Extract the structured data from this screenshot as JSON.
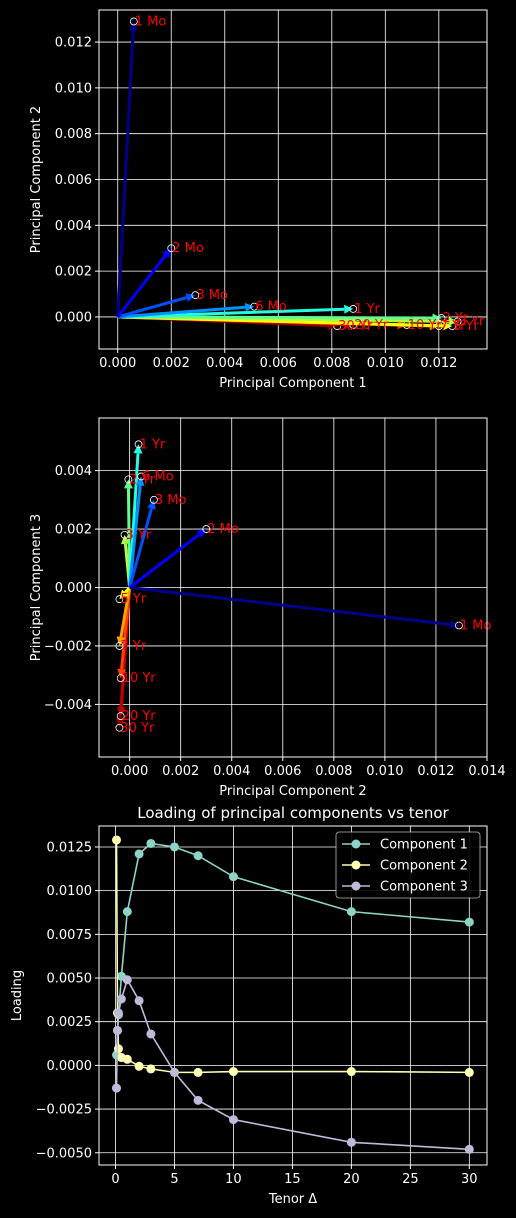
{
  "chart_data": [
    {
      "type": "quiver",
      "title": "",
      "xlabel": "Principal Component 1",
      "ylabel": "Principal Component 2",
      "xlim": [
        -0.0007,
        0.0138
      ],
      "ylim": [
        -0.0014,
        0.0134
      ],
      "xticks": [
        0.0,
        0.002,
        0.004,
        0.006,
        0.008,
        0.01,
        0.012
      ],
      "xtick_labels": [
        "0.000",
        "0.002",
        "0.004",
        "0.006",
        "0.008",
        "0.010",
        "0.012"
      ],
      "yticks": [
        0.0,
        0.002,
        0.004,
        0.006,
        0.008,
        0.01,
        0.012
      ],
      "ytick_labels": [
        "0.000",
        "0.002",
        "0.004",
        "0.006",
        "0.008",
        "0.010",
        "0.012"
      ],
      "grid": true,
      "arrows": [
        {
          "label": "1 Mo",
          "x": 0.0006,
          "y": 0.0129,
          "color": "#00008b"
        },
        {
          "label": "2 Mo",
          "x": 0.002,
          "y": 0.003,
          "color": "#0000ff"
        },
        {
          "label": "3 Mo",
          "x": 0.0029,
          "y": 0.00095,
          "color": "#0050ff"
        },
        {
          "label": "6 Mo",
          "x": 0.0051,
          "y": 0.00045,
          "color": "#0090ff"
        },
        {
          "label": "1 Yr",
          "x": 0.0088,
          "y": 0.00035,
          "color": "#20ffe0"
        },
        {
          "label": "2 Yr",
          "x": 0.0121,
          "y": -5e-05,
          "color": "#60ff90"
        },
        {
          "label": "3 Yr",
          "x": 0.0127,
          "y": -0.0002,
          "color": "#b0ff40"
        },
        {
          "label": "5 Yr",
          "x": 0.0125,
          "y": -0.0004,
          "color": "#ffff00"
        },
        {
          "label": "7 Yr",
          "x": 0.012,
          "y": -0.0004,
          "color": "#ffa000"
        },
        {
          "label": "10 Yr",
          "x": 0.0108,
          "y": -0.00035,
          "color": "#ff4000"
        },
        {
          "label": "20 Yr",
          "x": 0.0088,
          "y": -0.00035,
          "color": "#c00000"
        },
        {
          "label": "30 Yr",
          "x": 0.0082,
          "y": -0.0004,
          "color": "#800000"
        }
      ]
    },
    {
      "type": "quiver",
      "title": "",
      "xlabel": "Principal Component 2",
      "ylabel": "Principal Component 3",
      "xlim": [
        -0.0012,
        0.014
      ],
      "ylim": [
        -0.0058,
        0.0058
      ],
      "xticks": [
        0.0,
        0.002,
        0.004,
        0.006,
        0.008,
        0.01,
        0.012,
        0.014
      ],
      "xtick_labels": [
        "0.000",
        "0.002",
        "0.004",
        "0.006",
        "0.008",
        "0.010",
        "0.012",
        "0.014"
      ],
      "yticks": [
        -0.004,
        -0.002,
        0.0,
        0.002,
        0.004
      ],
      "ytick_labels": [
        "−0.004",
        "−0.002",
        "0.000",
        "0.002",
        "0.004"
      ],
      "grid": true,
      "arrows": [
        {
          "label": "1 Mo",
          "x": 0.0129,
          "y": -0.0013,
          "color": "#00008b"
        },
        {
          "label": "2 Mo",
          "x": 0.003,
          "y": 0.002,
          "color": "#0000ff"
        },
        {
          "label": "3 Mo",
          "x": 0.00095,
          "y": 0.003,
          "color": "#0050ff"
        },
        {
          "label": "6 Mo",
          "x": 0.00045,
          "y": 0.0038,
          "color": "#0090ff"
        },
        {
          "label": "1 Yr",
          "x": 0.00035,
          "y": 0.0049,
          "color": "#20ffe0"
        },
        {
          "label": "2 Yr",
          "x": -5e-05,
          "y": 0.0037,
          "color": "#60ff90"
        },
        {
          "label": "3 Yr",
          "x": -0.0002,
          "y": 0.0018,
          "color": "#b0ff40"
        },
        {
          "label": "5 Yr",
          "x": -0.0004,
          "y": -0.0004,
          "color": "#ffff00"
        },
        {
          "label": "7 Yr",
          "x": -0.0004,
          "y": -0.002,
          "color": "#ffa000"
        },
        {
          "label": "10 Yr",
          "x": -0.00035,
          "y": -0.0031,
          "color": "#ff4000"
        },
        {
          "label": "20 Yr",
          "x": -0.00035,
          "y": -0.0044,
          "color": "#c00000"
        },
        {
          "label": "30 Yr",
          "x": -0.0004,
          "y": -0.0048,
          "color": "#800000"
        }
      ]
    },
    {
      "type": "line",
      "title": "Loading of principal components vs tenor",
      "xlabel": "Tenor Δ",
      "ylabel": "Loading",
      "xlim": [
        -1.4,
        31.5
      ],
      "ylim": [
        -0.0057,
        0.0137
      ],
      "xticks": [
        0,
        5,
        10,
        15,
        20,
        25,
        30
      ],
      "xtick_labels": [
        "0",
        "5",
        "10",
        "15",
        "20",
        "25",
        "30"
      ],
      "yticks": [
        -0.005,
        -0.0025,
        0.0,
        0.0025,
        0.005,
        0.0075,
        0.01,
        0.0125
      ],
      "ytick_labels": [
        "−0.0050",
        "−0.0025",
        "0.0000",
        "0.0025",
        "0.0050",
        "0.0075",
        "0.0100",
        "0.0125"
      ],
      "grid": true,
      "legend_position": "top-right",
      "x": [
        0.0833,
        0.1667,
        0.25,
        0.5,
        1,
        2,
        3,
        5,
        7,
        10,
        20,
        30
      ],
      "series": [
        {
          "name": "Component 1",
          "color": "#8dd3c7",
          "values": [
            0.0006,
            0.002,
            0.0029,
            0.0051,
            0.0088,
            0.0121,
            0.0127,
            0.0125,
            0.012,
            0.0108,
            0.0088,
            0.0082
          ]
        },
        {
          "name": "Component 2",
          "color": "#ffffb3",
          "values": [
            0.0129,
            0.003,
            0.00095,
            0.00045,
            0.00035,
            -5e-05,
            -0.0002,
            -0.0004,
            -0.0004,
            -0.00035,
            -0.00035,
            -0.0004
          ]
        },
        {
          "name": "Component 3",
          "color": "#bebada",
          "values": [
            -0.0013,
            0.002,
            0.003,
            0.0038,
            0.0049,
            0.0037,
            0.0018,
            -0.0004,
            -0.002,
            -0.0031,
            -0.0044,
            -0.0048
          ]
        }
      ]
    }
  ]
}
